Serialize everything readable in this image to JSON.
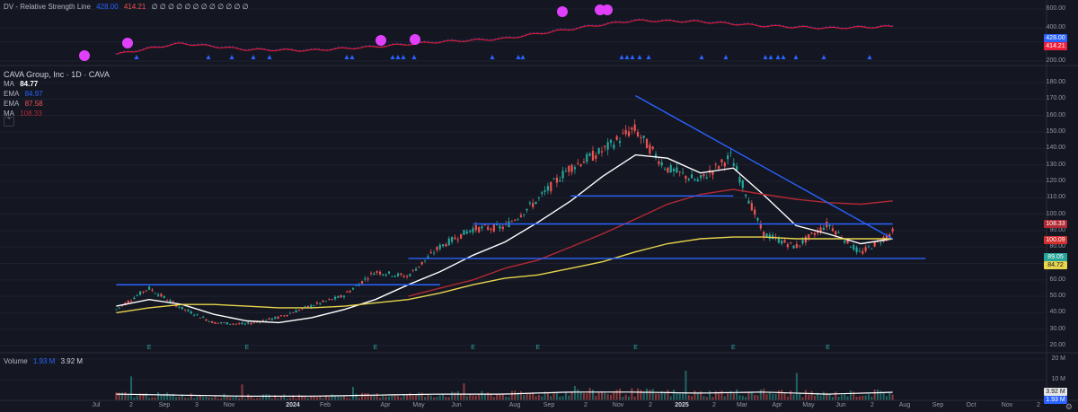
{
  "indicator_header": {
    "title": "DV - Relative Strength Line",
    "value1": "428.00",
    "value2": "414.21",
    "trail": "∅ ∅ ∅ ∅ ∅ ∅ ∅ ∅ ∅ ∅ ∅ ∅"
  },
  "chart_header": {
    "symbol": "CAVA Group, Inc · 1D · CAVA",
    "ma1_label": "MA",
    "ma1_value": "84.77",
    "ema1_label": "EMA",
    "ema1_value": "84.97",
    "ema2_label": "EMA",
    "ema2_value": "87.58",
    "ma2_label": "MA",
    "ma2_value": "108.33",
    "collapse": "⌃"
  },
  "volume_header": {
    "label": "Volume",
    "value1": "1.93 M",
    "value2": "3.92 M"
  },
  "price_tags": {
    "red": "108.33",
    "red2": "100.09",
    "green": "89.05",
    "yellow": "84.72",
    "rs_blue": "428.00",
    "rs_red": "414.21",
    "vol_white": "3.92 M",
    "vol_blue": "1.93 M"
  },
  "y_axis_rs": [
    "600.00",
    "400.00",
    "300.00",
    "200.00"
  ],
  "y_axis_price": [
    "180.00",
    "170.00",
    "160.00",
    "150.00",
    "140.00",
    "130.00",
    "120.00",
    "110.00",
    "100.00",
    "90.00",
    "80.00",
    "70.00",
    "60.00",
    "50.00",
    "40.00",
    "30.00",
    "20.00"
  ],
  "y_axis_volume": [
    "20 M",
    "10 M"
  ],
  "x_axis": [
    {
      "label": "Jul",
      "bold": false
    },
    {
      "label": "2",
      "bold": false
    },
    {
      "label": "Sep",
      "bold": false
    },
    {
      "label": "3",
      "bold": false
    },
    {
      "label": "Nov",
      "bold": false
    },
    {
      "label": "2024",
      "bold": true
    },
    {
      "label": "Feb",
      "bold": false
    },
    {
      "label": "Apr",
      "bold": false
    },
    {
      "label": "May",
      "bold": false
    },
    {
      "label": "Jun",
      "bold": false
    },
    {
      "label": "Aug",
      "bold": false
    },
    {
      "label": "Sep",
      "bold": false
    },
    {
      "label": "2",
      "bold": false
    },
    {
      "label": "Nov",
      "bold": false
    },
    {
      "label": "2",
      "bold": false
    },
    {
      "label": "2025",
      "bold": true
    },
    {
      "label": "2",
      "bold": false
    },
    {
      "label": "Mar",
      "bold": false
    },
    {
      "label": "Apr",
      "bold": false
    },
    {
      "label": "May",
      "bold": false
    },
    {
      "label": "Jun",
      "bold": false
    },
    {
      "label": "2",
      "bold": false
    },
    {
      "label": "Aug",
      "bold": false
    },
    {
      "label": "Sep",
      "bold": false
    },
    {
      "label": "Oct",
      "bold": false
    },
    {
      "label": "Nov",
      "bold": false
    },
    {
      "label": "2",
      "bold": false
    }
  ],
  "earnings_marker": "E",
  "settings_icon": "gear-icon",
  "colors": {
    "background": "#141722",
    "up": "#26a69a",
    "down": "#ef5350",
    "trendline": "#2962ff",
    "ma_white": "#ffffff",
    "ma_yellow": "#e8d44d",
    "ma_red": "#b22833",
    "rs_line": "#d81b3a",
    "rs_fill": "#2d3fa8",
    "dot": "#e040fb"
  },
  "chart_data": [
    {
      "type": "line",
      "title": "DV - Relative Strength Line",
      "ylim": [
        200,
        600
      ],
      "x": [
        "2023-07",
        "2023-09",
        "2023-11",
        "2024-01",
        "2024-03",
        "2024-05",
        "2024-07",
        "2024-09",
        "2024-11",
        "2025-01",
        "2025-03",
        "2025-05",
        "2025-07"
      ],
      "series": [
        {
          "values": [
            230,
            290,
            255,
            250,
            270,
            300,
            320,
            390,
            470,
            460,
            420,
            400,
            414
          ]
        }
      ]
    },
    {
      "type": "line",
      "title": "CAVA Group, Inc · 1D · CAVA",
      "ylim": [
        20,
        180
      ],
      "x": [
        "2023-07",
        "2023-08",
        "2023-09",
        "2023-10",
        "2023-11",
        "2023-12",
        "2024-01",
        "2024-02",
        "2024-03",
        "2024-04",
        "2024-05",
        "2024-06",
        "2024-07",
        "2024-08",
        "2024-09",
        "2024-10",
        "2024-11",
        "2024-12",
        "2025-01",
        "2025-02",
        "2025-03",
        "2025-04",
        "2025-05",
        "2025-06",
        "2025-07"
      ],
      "series": [
        {
          "name": "CAVA",
          "values": [
            42,
            55,
            43,
            34,
            33,
            37,
            44,
            50,
            65,
            62,
            80,
            91,
            92,
            108,
            128,
            138,
            152,
            128,
            120,
            135,
            88,
            80,
            94,
            76,
            89
          ]
        },
        {
          "name": "MA",
          "values": [
            44,
            48,
            45,
            39,
            35,
            34,
            37,
            42,
            48,
            57,
            65,
            75,
            83,
            95,
            108,
            123,
            136,
            134,
            125,
            128,
            112,
            93,
            88,
            82,
            85
          ]
        },
        {
          "name": "MA",
          "values": [
            40,
            43,
            45,
            45,
            44,
            43,
            43,
            44,
            46,
            48,
            52,
            57,
            61,
            63,
            67,
            71,
            77,
            82,
            85,
            86,
            86,
            85,
            85,
            85,
            85
          ]
        },
        {
          "name": "MA",
          "values": [
            null,
            null,
            null,
            null,
            null,
            null,
            null,
            null,
            null,
            50,
            55,
            60,
            67,
            72,
            80,
            88,
            97,
            106,
            112,
            115,
            112,
            109,
            107,
            106,
            108
          ]
        }
      ],
      "trendlines": [
        {
          "from": [
            "2024-11",
            172
          ],
          "to": [
            "2025-07",
            85
          ]
        },
        {
          "from": [
            "2023-07",
            57
          ],
          "to": [
            "2024-05",
            57
          ]
        },
        {
          "from": [
            "2024-04",
            73
          ],
          "to": [
            "2025-08",
            73
          ]
        },
        {
          "from": [
            "2024-06",
            94
          ],
          "to": [
            "2025-07",
            94
          ]
        },
        {
          "from": [
            "2024-09",
            111
          ],
          "to": [
            "2025-02",
            111
          ]
        }
      ]
    },
    {
      "type": "bar",
      "title": "Volume",
      "ylim": [
        0,
        20
      ],
      "x": [
        "2023-07",
        "2023-09",
        "2023-11",
        "2024-01",
        "2024-03",
        "2024-05",
        "2024-07",
        "2024-09",
        "2024-11",
        "2025-01",
        "2025-03",
        "2025-05",
        "2025-07"
      ],
      "series": [
        {
          "name": "Volume",
          "values": [
            3,
            2.5,
            2,
            2,
            2.5,
            3,
            3,
            4,
            4,
            3.5,
            4,
            3,
            3.9
          ]
        }
      ]
    }
  ]
}
